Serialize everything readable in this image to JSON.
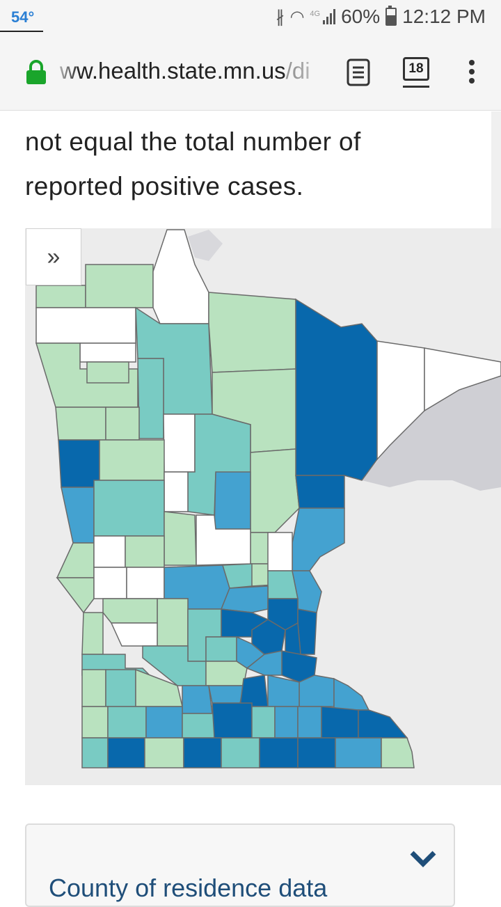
{
  "status_bar": {
    "temperature": "54°",
    "network": "4G",
    "battery": "60%",
    "time": "12:12 PM",
    "icons": [
      "bluetooth-icon",
      "wifi-icon",
      "signal-icon",
      "battery-icon"
    ]
  },
  "browser": {
    "url_host": "ww.health.state.mn.us",
    "url_path": "/di",
    "tab_count": "18",
    "icons": [
      "lock-icon",
      "reader-mode-icon",
      "tabs-icon",
      "menu-icon"
    ]
  },
  "content": {
    "text_line1": "not equal the total number of",
    "text_line2": "reported positive cases."
  },
  "map": {
    "expand_label": "»",
    "legend_colors": {
      "none": "#ffffff",
      "low": "#b9e2bf",
      "mid_low": "#79cbc3",
      "mid_high": "#44a2d0",
      "high": "#0868ac"
    },
    "border_color": "#6a6a6a",
    "water_color": "#cfcfd4",
    "land_color": "#ececec"
  },
  "accordion": {
    "title": "County of residence data"
  },
  "colors": {
    "accent": "#1f4e79",
    "lock": "#1aa52b"
  }
}
